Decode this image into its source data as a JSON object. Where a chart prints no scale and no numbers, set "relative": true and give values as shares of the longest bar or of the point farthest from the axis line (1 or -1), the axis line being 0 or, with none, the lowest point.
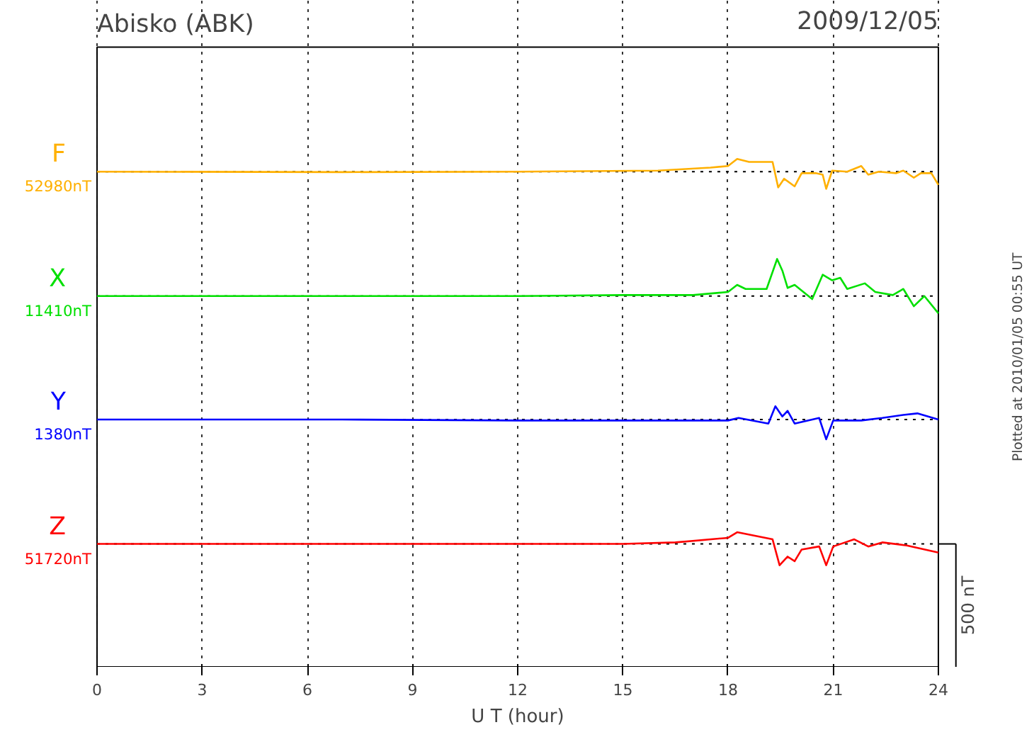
{
  "chart_data": {
    "type": "line",
    "title": "Abisko (ABK)",
    "subtitle": "2009/12/05",
    "xlabel": "U T (hour)",
    "relative": true,
    "xlim": [
      0,
      24
    ],
    "xticks": [
      0,
      3,
      6,
      9,
      12,
      15,
      18,
      21,
      24
    ],
    "grid": "x",
    "legend": false,
    "line_style": "solid",
    "series": [
      {
        "name": "F",
        "color": "#ffb000",
        "x": [
          0,
          7,
          12,
          16,
          17.5,
          18.0,
          18.26,
          18.6,
          19.27,
          19.43,
          19.6,
          19.9,
          20.1,
          20.5,
          20.7,
          20.8,
          20.97,
          21.4,
          21.8,
          22.0,
          22.3,
          22.8,
          23.0,
          23.3,
          23.5,
          23.8,
          24
        ],
        "values": [
          0.975,
          0.974,
          0.975,
          0.977,
          0.983,
          0.986,
          1.0,
          0.994,
          0.994,
          0.944,
          0.961,
          0.946,
          0.972,
          0.972,
          0.969,
          0.941,
          0.977,
          0.975,
          0.986,
          0.969,
          0.975,
          0.972,
          0.977,
          0.963,
          0.972,
          0.972,
          0.949
        ]
      },
      {
        "name": "X",
        "color": "#00e000",
        "x": [
          0,
          7,
          12,
          15,
          17,
          18.0,
          18.26,
          18.5,
          19.1,
          19.4,
          19.55,
          19.7,
          19.9,
          20.4,
          20.7,
          20.97,
          21.2,
          21.4,
          21.9,
          22.2,
          22.7,
          23.0,
          23.3,
          23.6,
          24
        ],
        "values": [
          0.73,
          0.73,
          0.73,
          0.732,
          0.732,
          0.738,
          0.752,
          0.744,
          0.744,
          0.803,
          0.78,
          0.746,
          0.752,
          0.724,
          0.772,
          0.761,
          0.766,
          0.744,
          0.755,
          0.738,
          0.732,
          0.744,
          0.71,
          0.73,
          0.696
        ]
      },
      {
        "name": "Y",
        "color": "#0000ff",
        "x": [
          0,
          7,
          12,
          15,
          18,
          18.3,
          19.15,
          19.35,
          19.55,
          19.7,
          19.9,
          20.6,
          20.8,
          21.0,
          21.8,
          22.4,
          23.0,
          23.4,
          24
        ],
        "values": [
          0.487,
          0.487,
          0.485,
          0.485,
          0.485,
          0.49,
          0.479,
          0.513,
          0.493,
          0.504,
          0.479,
          0.49,
          0.448,
          0.485,
          0.485,
          0.49,
          0.496,
          0.499,
          0.487
        ]
      },
      {
        "name": "Z",
        "color": "#ff0000",
        "x": [
          0,
          7,
          12,
          15,
          16.5,
          18.0,
          18.26,
          19.27,
          19.47,
          19.7,
          19.9,
          20.1,
          20.6,
          20.8,
          21.0,
          21.6,
          22.0,
          22.4,
          23.1,
          24
        ],
        "values": [
          0.242,
          0.242,
          0.242,
          0.242,
          0.245,
          0.254,
          0.265,
          0.251,
          0.2,
          0.217,
          0.208,
          0.231,
          0.237,
          0.2,
          0.237,
          0.251,
          0.237,
          0.245,
          0.239,
          0.225
        ]
      }
    ],
    "ref_lines": [
      {
        "axis": "y",
        "value": 0.975,
        "label": "52980nT",
        "color": "#000000",
        "line_style": "dotted"
      },
      {
        "axis": "y",
        "value": 0.73,
        "label": "11410nT",
        "color": "#000000",
        "line_style": "dotted"
      },
      {
        "axis": "y",
        "value": 0.487,
        "label": "1380nT",
        "color": "#000000",
        "line_style": "dotted"
      },
      {
        "axis": "y",
        "value": 0.242,
        "label": "51720nT",
        "color": "#000000",
        "line_style": "dotted"
      }
    ],
    "annotations": [
      "500 nT",
      "Plotted at 2010/01/05 00:55 UT"
    ]
  }
}
